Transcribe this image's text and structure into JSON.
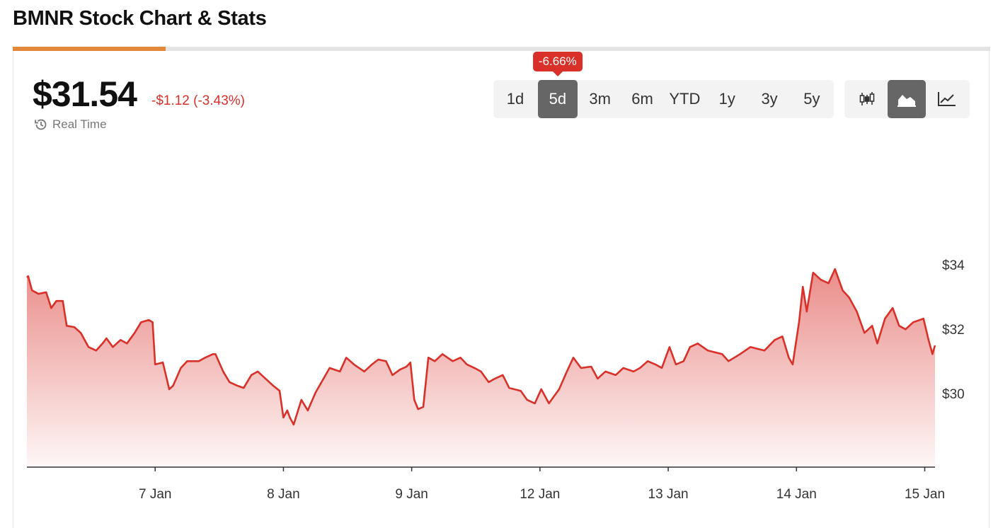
{
  "header": {
    "title": "BMNR Stock Chart & Stats"
  },
  "quote": {
    "price": "$31.54",
    "change": "-$1.12 (-3.43%)",
    "real_time": "Real Time"
  },
  "range_selector": {
    "badge": "-6.66%",
    "options": [
      "1d",
      "5d",
      "3m",
      "6m",
      "YTD",
      "1y",
      "3y",
      "5y"
    ],
    "active": 1
  },
  "chart_data": {
    "type": "area",
    "color": "#d9302a",
    "grid": false,
    "x": [
      0,
      0.01,
      0.04,
      0.09,
      0.15,
      0.19,
      0.23,
      0.28,
      0.31,
      0.37,
      0.42,
      0.48,
      0.54,
      0.59,
      0.62,
      0.67,
      0.73,
      0.78,
      0.84,
      0.89,
      0.95,
      0.98,
      1.0,
      1.06,
      1.11,
      1.14,
      1.2,
      1.25,
      1.34,
      1.39,
      1.45,
      1.47,
      1.53,
      1.58,
      1.64,
      1.69,
      1.75,
      1.8,
      1.86,
      1.92,
      1.97,
      2.0,
      2.03,
      2.05,
      2.08,
      2.14,
      2.19,
      2.25,
      2.36,
      2.44,
      2.49,
      2.55,
      2.63,
      2.69,
      2.74,
      2.8,
      2.85,
      2.91,
      2.96,
      2.99,
      3.02,
      3.05,
      3.09,
      3.13,
      3.18,
      3.24,
      3.32,
      3.38,
      3.43,
      3.49,
      3.54,
      3.6,
      3.65,
      3.71,
      3.76,
      3.85,
      3.9,
      3.96,
      4.01,
      4.07,
      4.15,
      4.21,
      4.26,
      4.32,
      4.4,
      4.45,
      4.51,
      4.59,
      4.65,
      4.73,
      4.78,
      4.84,
      4.9,
      4.95,
      5.01,
      5.06,
      5.12,
      5.17,
      5.23,
      5.31,
      5.42,
      5.47,
      5.56,
      5.64,
      5.75,
      5.83,
      5.89,
      5.94,
      5.97,
      6.02,
      6.05,
      6.08,
      6.13,
      6.19,
      6.25,
      6.3,
      6.36,
      6.41,
      6.47,
      6.5,
      6.53,
      6.59,
      6.63,
      6.69,
      6.75,
      6.8,
      6.85,
      6.91,
      6.99,
      7.03,
      7.06,
      7.08
    ],
    "values": [
      33.65,
      33.69,
      33.25,
      33.14,
      33.19,
      32.7,
      32.92,
      32.92,
      32.15,
      32.11,
      31.93,
      31.49,
      31.38,
      31.6,
      31.76,
      31.49,
      31.71,
      31.6,
      31.93,
      32.26,
      32.33,
      32.26,
      30.95,
      31.01,
      30.18,
      30.29,
      30.84,
      31.05,
      31.05,
      31.16,
      31.27,
      31.27,
      30.73,
      30.4,
      30.29,
      30.22,
      30.62,
      30.73,
      30.51,
      30.29,
      30.13,
      29.3,
      29.52,
      29.3,
      29.08,
      29.85,
      29.52,
      30.07,
      30.84,
      30.73,
      31.16,
      30.95,
      30.73,
      30.95,
      31.1,
      31.05,
      30.62,
      30.79,
      30.88,
      31.01,
      29.85,
      29.56,
      29.63,
      31.16,
      31.05,
      31.27,
      31.05,
      31.16,
      30.95,
      30.84,
      30.73,
      30.4,
      30.51,
      30.62,
      30.22,
      30.13,
      29.85,
      29.74,
      30.18,
      29.74,
      30.18,
      30.73,
      31.16,
      30.84,
      30.88,
      30.51,
      30.73,
      30.62,
      30.84,
      30.73,
      30.84,
      31.05,
      30.95,
      30.84,
      31.49,
      30.95,
      31.05,
      31.49,
      31.6,
      31.38,
      31.27,
      31.05,
      31.27,
      31.49,
      31.38,
      31.71,
      31.82,
      31.16,
      30.95,
      32.26,
      33.36,
      32.59,
      33.8,
      33.58,
      33.47,
      33.91,
      33.25,
      33.03,
      32.59,
      32.26,
      31.93,
      32.15,
      31.6,
      32.37,
      32.7,
      32.15,
      32.04,
      32.26,
      32.37,
      31.71,
      31.27,
      31.54
    ],
    "xlim": [
      0,
      7.08
    ],
    "xticks": [
      {
        "value": 1,
        "label": "7 Jan"
      },
      {
        "value": 2,
        "label": "8 Jan"
      },
      {
        "value": 3,
        "label": "9 Jan"
      },
      {
        "value": 4,
        "label": "12 Jan"
      },
      {
        "value": 5,
        "label": "13 Jan"
      },
      {
        "value": 6,
        "label": "14 Jan"
      },
      {
        "value": 7,
        "label": "15 Jan"
      }
    ],
    "ylim": [
      27.76,
      37.87
    ],
    "yticks": [
      {
        "value": 30,
        "label": "$30"
      },
      {
        "value": 32,
        "label": "$32"
      },
      {
        "value": 34,
        "label": "$34"
      }
    ]
  }
}
